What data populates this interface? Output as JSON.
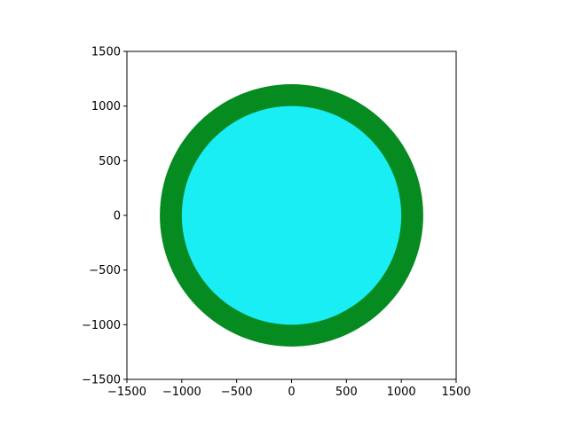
{
  "chart_data": {
    "type": "heatmap",
    "title": "",
    "xlabel": "",
    "ylabel": "",
    "xlim": [
      -1500,
      1500
    ],
    "ylim": [
      -1500,
      1500
    ],
    "xticks": [
      -1500,
      -1000,
      -500,
      0,
      500,
      1000,
      1500
    ],
    "yticks": [
      -1500,
      -1000,
      -500,
      0,
      500,
      1000,
      1500
    ],
    "xtick_labels": [
      "−1500",
      "−1000",
      "−500",
      "0",
      "500",
      "1000",
      "1500"
    ],
    "ytick_labels": [
      "−1500",
      "−1000",
      "−500",
      "0",
      "500",
      "1000",
      "1500"
    ],
    "grid": false,
    "regions": [
      {
        "shape": "disk",
        "center": [
          0,
          0
        ],
        "radius": 1200,
        "color": "#058b1f"
      },
      {
        "shape": "disk",
        "center": [
          0,
          0
        ],
        "radius": 1000,
        "color": "#1aeef5"
      }
    ],
    "background_color": "#ffffff"
  }
}
